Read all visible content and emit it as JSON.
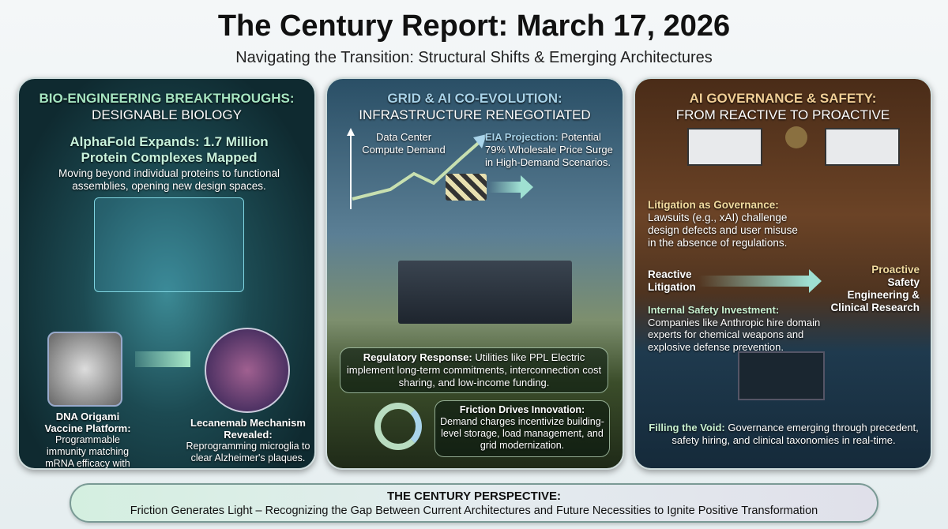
{
  "header": {
    "title": "The Century Report: March 17, 2026",
    "subtitle": "Navigating the Transition: Structural Shifts & Emerging Architectures"
  },
  "panels": [
    {
      "title": "BIO-ENGINEERING BREAKTHROUGHS:",
      "subtitle": "DESIGNABLE BIOLOGY",
      "headline": "AlphaFold Expands: 1.7 Million Protein Complexes Mapped",
      "headline_text": "Moving beyond individual proteins to functional assemblies, opening new design spaces.",
      "item1_title": "DNA Origami Vaccine Platform:",
      "item1_text": "Programmable immunity matching mRNA efficacy with superior stability.",
      "item2_title": "Lecanemab Mechanism Revealed:",
      "item2_text": "Reprogramming microglia to clear Alzheimer's plaques."
    },
    {
      "title": "GRID & AI CO-EVOLUTION:",
      "subtitle": "INFRASTRUCTURE RENEGOTIATED",
      "chart_label": "Data Center Compute Demand",
      "eia_title": "EIA Projection:",
      "eia_text": "Potential 79% Wholesale Price Surge in High-Demand Scenarios.",
      "reg_title": "Regulatory Response:",
      "reg_text": "Utilities like PPL Electric implement long-term commitments, interconnection cost sharing, and low-income funding.",
      "fric_title": "Friction Drives Innovation:",
      "fric_text": "Demand charges incentivize building-level storage, load management, and grid modernization."
    },
    {
      "title": "AI GOVERNANCE & SAFETY:",
      "subtitle": "FROM REACTIVE TO PROACTIVE",
      "lit_title": "Litigation as Governance:",
      "lit_text": "Lawsuits (e.g., xAI) challenge design defects and user misuse in the absence of regulations.",
      "reactive": "Reactive Litigation",
      "proactive_title": "Proactive",
      "proactive_text": "Safety Engineering & Clinical Research",
      "internal_title": "Internal Safety Investment:",
      "internal_text": "Companies like Anthropic hire domain experts for chemical weapons and explosive defense prevention.",
      "void_title": "Filling the Void:",
      "void_text": "Governance emerging through precedent, safety hiring, and clinical taxonomies in real-time."
    }
  ],
  "banner": {
    "heading": "THE CENTURY PERSPECTIVE:",
    "text": "Friction Generates Light – Recognizing the Gap Between Current Architectures and Future Necessities to Ignite Positive Transformation"
  }
}
